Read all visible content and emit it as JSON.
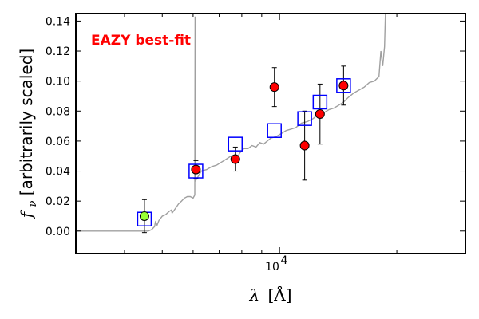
{
  "chart_data": {
    "type": "scatter",
    "title": "",
    "annotation": "EAZY best-fit",
    "annotation_color": "#ff0000",
    "xlabel_lambda": "λ",
    "xlabel_unit": "[Å]",
    "ylabel_symbol": "f",
    "ylabel_sub": "ν",
    "ylabel_text": " [arbitrarily scaled]",
    "xscale": "log",
    "xlim": [
      3000,
      30000
    ],
    "ylim": [
      -0.015,
      0.145
    ],
    "yticks": [
      0.0,
      0.02,
      0.04,
      0.06,
      0.08,
      0.1,
      0.12,
      0.14
    ],
    "ytick_labels": [
      "0.00",
      "0.02",
      "0.04",
      "0.06",
      "0.08",
      "0.10",
      "0.12",
      "0.14"
    ],
    "xtick_major_label_base": "10",
    "xtick_major_label_exp": "4",
    "colors": {
      "model": "#a0a0a0",
      "model_phot": "#0000ff",
      "observed": "#ff0000",
      "observed_special": "#99ff33",
      "errorbar": "#000000"
    },
    "series": [
      {
        "name": "model_spectrum",
        "kind": "line",
        "x": [
          3000,
          4600,
          4700,
          4780,
          4800,
          4850,
          4900,
          5000,
          5100,
          5200,
          5280,
          5300,
          5400,
          5500,
          5600,
          5700,
          5800,
          5900,
          6000,
          6060,
          6070,
          6080,
          6090,
          6100,
          6200,
          6300,
          6500,
          6700,
          6900,
          7100,
          7300,
          7500,
          7700,
          7900,
          8100,
          8300,
          8500,
          8700,
          8900,
          9100,
          9300,
          9500,
          9800,
          10100,
          10400,
          10700,
          11000,
          11400,
          11800,
          12200,
          12600,
          13000,
          13400,
          13800,
          14200,
          14600,
          15000,
          15500,
          16000,
          16500,
          17000,
          17500,
          18000,
          18200,
          18400,
          18600,
          18700,
          18800
        ],
        "y": [
          0.0,
          0.0,
          0.001,
          0.003,
          0.006,
          0.004,
          0.007,
          0.01,
          0.011,
          0.013,
          0.014,
          0.012,
          0.015,
          0.018,
          0.02,
          0.022,
          0.023,
          0.023,
          0.022,
          0.024,
          0.143,
          0.06,
          0.036,
          0.034,
          0.037,
          0.04,
          0.041,
          0.043,
          0.044,
          0.046,
          0.048,
          0.05,
          0.046,
          0.052,
          0.055,
          0.055,
          0.057,
          0.056,
          0.059,
          0.058,
          0.06,
          0.062,
          0.063,
          0.065,
          0.067,
          0.068,
          0.069,
          0.072,
          0.073,
          0.075,
          0.078,
          0.079,
          0.081,
          0.082,
          0.084,
          0.086,
          0.089,
          0.092,
          0.094,
          0.096,
          0.099,
          0.1,
          0.103,
          0.12,
          0.11,
          0.123,
          0.145,
          0.145
        ]
      },
      {
        "name": "model_photometry",
        "kind": "marker",
        "marker": "square",
        "x": [
          4500,
          6100,
          7700,
          9700,
          11600,
          12700,
          14600
        ],
        "y": [
          0.008,
          0.04,
          0.058,
          0.067,
          0.075,
          0.086,
          0.097
        ]
      },
      {
        "name": "observed_photometry",
        "kind": "marker",
        "marker": "circle",
        "x": [
          4500,
          6100,
          7700,
          9700,
          11600,
          12700,
          14600
        ],
        "y": [
          0.01,
          0.041,
          0.048,
          0.096,
          0.057,
          0.078,
          0.097
        ],
        "yerr": [
          0.011,
          0.006,
          0.008,
          0.013,
          0.023,
          0.02,
          0.013
        ],
        "colors": [
          "#99ff33",
          "#ff0000",
          "#ff0000",
          "#ff0000",
          "#ff0000",
          "#ff0000",
          "#ff0000"
        ]
      }
    ]
  }
}
